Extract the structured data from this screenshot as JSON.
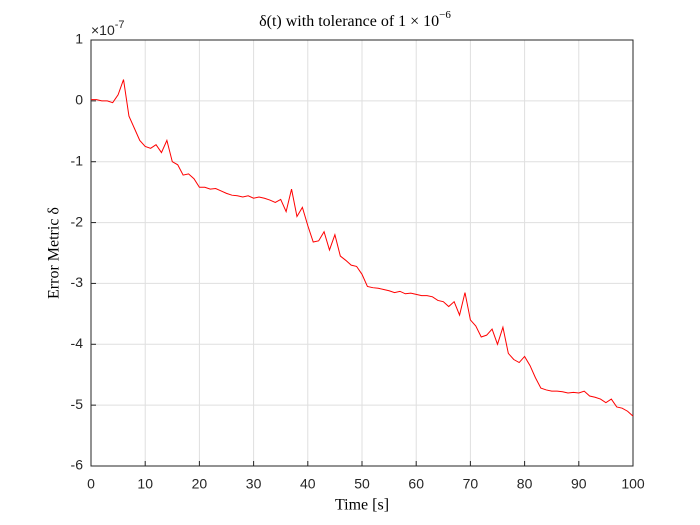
{
  "chart_data": {
    "type": "line",
    "title": "δ(t) with tolerance of 1 × 10",
    "title_exponent": "−6",
    "x_label": "Time [s]",
    "y_label": "Error Metric δ",
    "y_multiplier": "×10",
    "y_multiplier_exponent": "-7",
    "xlim": [
      0,
      100
    ],
    "xticks": [
      0,
      10,
      20,
      30,
      40,
      50,
      60,
      70,
      80,
      90,
      100
    ],
    "ylim": [
      -6,
      1
    ],
    "yticks": [
      1,
      0,
      -1,
      -2,
      -3,
      -4,
      -5,
      -6
    ],
    "grid": true,
    "x": [
      0,
      1,
      2,
      3,
      4,
      5,
      6,
      7,
      8,
      9,
      10,
      11,
      12,
      13,
      14,
      15,
      16,
      17,
      18,
      19,
      20,
      21,
      22,
      23,
      24,
      25,
      26,
      27,
      28,
      29,
      30,
      31,
      32,
      33,
      34,
      35,
      36,
      37,
      38,
      39,
      40,
      41,
      42,
      43,
      44,
      45,
      46,
      47,
      48,
      49,
      50,
      51,
      52,
      53,
      54,
      55,
      56,
      57,
      58,
      59,
      60,
      61,
      62,
      63,
      64,
      65,
      66,
      67,
      68,
      69,
      70,
      71,
      72,
      73,
      74,
      75,
      76,
      77,
      78,
      79,
      80,
      81,
      82,
      83,
      84,
      85,
      86,
      87,
      88,
      89,
      90,
      91,
      92,
      93,
      94,
      95,
      96,
      97,
      98,
      99,
      100
    ],
    "series": [
      {
        "color": "#ff0000",
        "values": [
          0.02,
          0.02,
          0.0,
          0.0,
          -0.03,
          0.1,
          0.35,
          -0.25,
          -0.45,
          -0.65,
          -0.75,
          -0.78,
          -0.72,
          -0.85,
          -0.65,
          -1.0,
          -1.05,
          -1.22,
          -1.2,
          -1.28,
          -1.42,
          -1.42,
          -1.45,
          -1.44,
          -1.48,
          -1.52,
          -1.55,
          -1.56,
          -1.58,
          -1.56,
          -1.6,
          -1.58,
          -1.6,
          -1.63,
          -1.67,
          -1.62,
          -1.82,
          -1.45,
          -1.9,
          -1.75,
          -2.05,
          -2.32,
          -2.3,
          -2.15,
          -2.45,
          -2.2,
          -2.55,
          -2.62,
          -2.7,
          -2.72,
          -2.85,
          -3.05,
          -3.07,
          -3.08,
          -3.1,
          -3.12,
          -3.15,
          -3.13,
          -3.17,
          -3.16,
          -3.18,
          -3.2,
          -3.2,
          -3.22,
          -3.28,
          -3.3,
          -3.38,
          -3.3,
          -3.52,
          -3.15,
          -3.6,
          -3.7,
          -3.88,
          -3.85,
          -3.75,
          -4.0,
          -3.72,
          -4.15,
          -4.25,
          -4.3,
          -4.2,
          -4.35,
          -4.55,
          -4.72,
          -4.75,
          -4.77,
          -4.77,
          -4.78,
          -4.8,
          -4.79,
          -4.8,
          -4.77,
          -4.85,
          -4.87,
          -4.9,
          -4.96,
          -4.9,
          -5.03,
          -5.05,
          -5.1,
          -5.18
        ]
      }
    ]
  }
}
